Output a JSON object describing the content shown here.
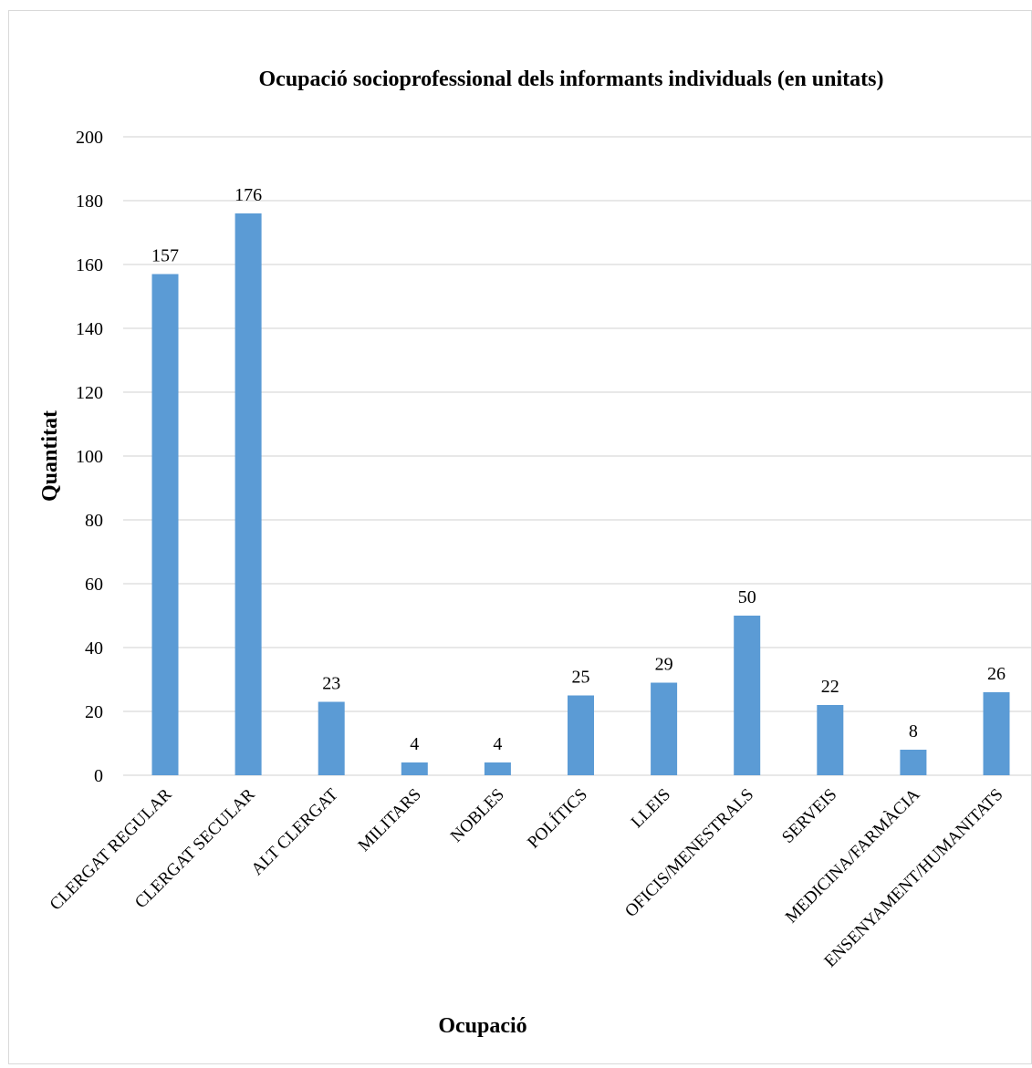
{
  "chart_data": {
    "type": "bar",
    "title": "Ocupació socioprofessional dels informants individuals (en unitats)",
    "xlabel": "Ocupació",
    "ylabel": "Quantitat",
    "categories": [
      "CLERGAT REGULAR",
      "CLERGAT SECULAR",
      "ALT CLERGAT",
      "MILITARS",
      "NOBLES",
      "POLÍTICS",
      "LLEIS",
      "OFICIS/MENESTRALS",
      "SERVEIS",
      "MEDICINA/FARMÀCIA",
      "ENSENYAMENT/HUMANITATS"
    ],
    "values": [
      157,
      176,
      23,
      4,
      4,
      25,
      29,
      50,
      22,
      8,
      26
    ],
    "ylim": [
      0,
      200
    ],
    "yticks": [
      0,
      20,
      40,
      60,
      80,
      100,
      120,
      140,
      160,
      180,
      200
    ],
    "grid": true,
    "data_labels": true,
    "bar_color": "#5b9bd5",
    "grid_color": "#d9d9d9"
  }
}
